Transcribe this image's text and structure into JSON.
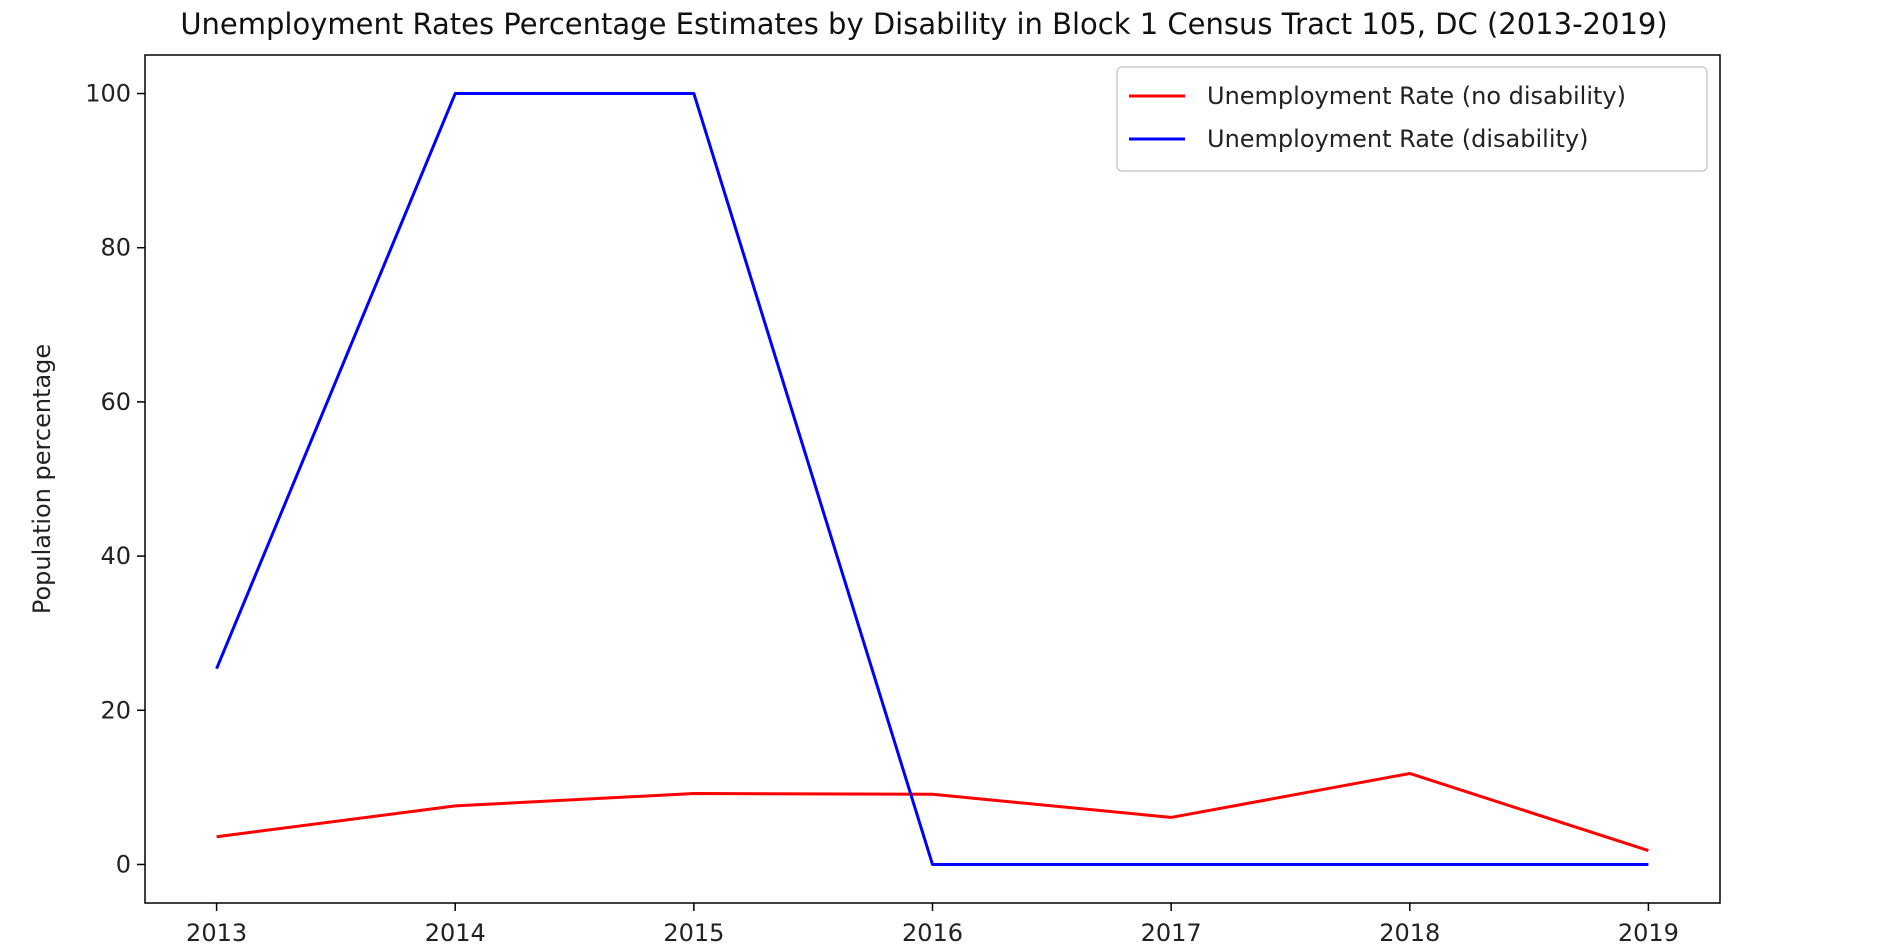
{
  "chart_data": {
    "type": "line",
    "title": "Unemployment Rates Percentage Estimates by Disability in Block 1 Census Tract 105, DC (2013-2019)",
    "xlabel": "",
    "ylabel": "Population percentage",
    "x": [
      "2013",
      "2014",
      "2015",
      "2016",
      "2017",
      "2018",
      "2019"
    ],
    "xlim": [
      2012.7,
      2019.3
    ],
    "ylim": [
      -5,
      105
    ],
    "yticks": [
      0,
      20,
      40,
      60,
      80,
      100
    ],
    "grid": false,
    "legend_position": "top-right",
    "series": [
      {
        "name": "Unemployment Rate (no disability)",
        "color": "#ff0000",
        "values": [
          3.6,
          7.6,
          9.2,
          9.1,
          6.1,
          11.8,
          1.8
        ]
      },
      {
        "name": "Unemployment Rate (disability)",
        "color": "#0000ff",
        "values": [
          25.4,
          100,
          100,
          0,
          0,
          0,
          0
        ]
      }
    ]
  }
}
